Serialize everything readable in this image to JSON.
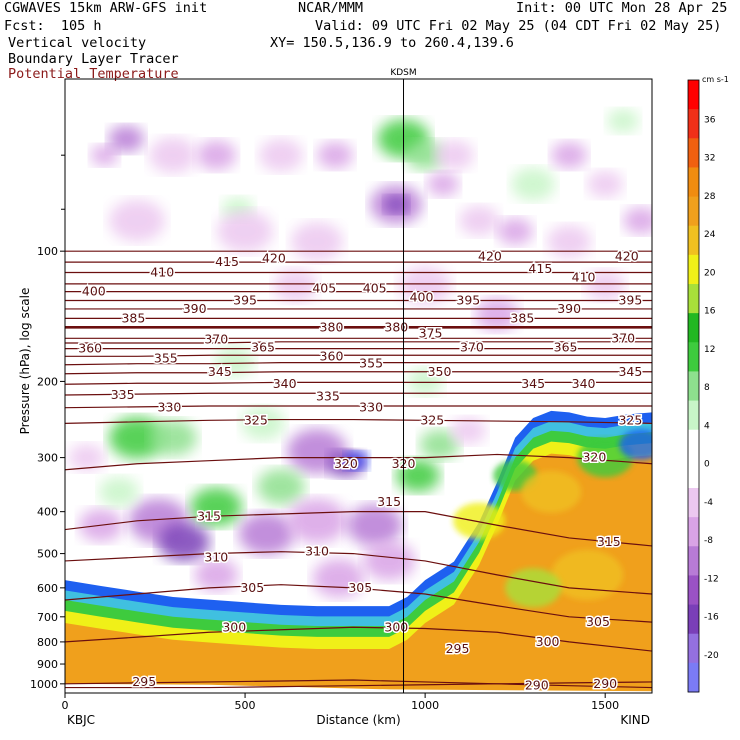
{
  "header": {
    "model": "CGWAVES 15km ARW-GFS init",
    "org": "NCAR/MMM",
    "init": "Init: 00 UTC Mon 28 Apr 25",
    "fcst": "Fcst:  105 h",
    "valid": "Valid: 09 UTC Fri 02 May 25 (04 CDT Fri 02 May 25)",
    "field1": "Vertical velocity",
    "field2": "Boundary Layer Tracer",
    "field3": "Potential Temperature",
    "xy": "XY= 150.5,136.9 to 260.4,139.6",
    "field3_color": "#8b1a1a"
  },
  "chart_data": {
    "type": "heatmap",
    "xlabel": "Distance (km)",
    "ylabel": "Pressure (hPa), log scale",
    "xlim": [
      0,
      1630
    ],
    "xticks": [
      0,
      500,
      1000,
      1500
    ],
    "ylim": [
      1050,
      40
    ],
    "yticks": [
      100,
      200,
      300,
      400,
      500,
      600,
      700,
      800,
      900,
      1000
    ],
    "left_station": "KBJC",
    "right_station": "KIND",
    "marker_station": "KDSM",
    "marker_x": 940,
    "colorbar": {
      "unit": "cm s-1",
      "levels": [
        -20,
        -16,
        -12,
        -8,
        -4,
        0,
        4,
        8,
        12,
        16,
        20,
        24,
        28,
        32,
        36
      ],
      "colors": [
        "#7b7bf5",
        "#9470e0",
        "#7a3fb8",
        "#9a52c4",
        "#b87bd6",
        "#d9a3e6",
        "#ecc8f0",
        "#ffffff",
        "#ffffff",
        "#c8f5c8",
        "#8ee08e",
        "#3ecb3e",
        "#22b822",
        "#a8e03a",
        "#f0f018",
        "#f0c020",
        "#f0a01c",
        "#f08c10",
        "#f06010",
        "#f03018",
        "#ff0000"
      ]
    },
    "theta_contours": [
      {
        "theta": 295,
        "p": [
          1000,
          995,
          990,
          985,
          980,
          990,
          1000,
          1010,
          1020
        ]
      },
      {
        "theta": 290,
        "p": [
          1020,
          1020,
          1020,
          1015,
          1010,
          1005,
          1000,
          995,
          990
        ]
      },
      {
        "theta": 300,
        "p": [
          800,
          780,
          760,
          750,
          740,
          745,
          760,
          800,
          840
        ]
      },
      {
        "theta": 305,
        "p": [
          640,
          620,
          600,
          590,
          600,
          620,
          660,
          700,
          720
        ]
      },
      {
        "theta": 310,
        "p": [
          520,
          510,
          500,
          495,
          500,
          520,
          560,
          600,
          620
        ]
      },
      {
        "theta": 315,
        "p": [
          440,
          420,
          410,
          405,
          400,
          400,
          430,
          460,
          480
        ]
      },
      {
        "theta": 320,
        "p": [
          320,
          310,
          305,
          300,
          300,
          300,
          295,
          300,
          310
        ]
      },
      {
        "theta": 325,
        "p": [
          250,
          248,
          246,
          245,
          245,
          246,
          247,
          248,
          250
        ]
      },
      {
        "theta": 330,
        "p": [
          230,
          229,
          228,
          228,
          228,
          228,
          228,
          228,
          228
        ]
      },
      {
        "theta": 335,
        "p": [
          215,
          214,
          213,
          213,
          213,
          213,
          213,
          213,
          213
        ]
      },
      {
        "theta": 340,
        "p": [
          203,
          202,
          202,
          201,
          201,
          201,
          201,
          201,
          201
        ]
      },
      {
        "theta": 345,
        "p": [
          192,
          191,
          191,
          190,
          190,
          190,
          190,
          190,
          190
        ]
      },
      {
        "theta": 350,
        "p": [
          183,
          182,
          182,
          181,
          181,
          181,
          181,
          181,
          181
        ]
      },
      {
        "theta": 355,
        "p": [
          175,
          175,
          174,
          174,
          174,
          174,
          174,
          174,
          174
        ]
      },
      {
        "theta": 360,
        "p": [
          168,
          168,
          168,
          168,
          168,
          168,
          168,
          168,
          168
        ]
      },
      {
        "theta": 365,
        "p": [
          163,
          163,
          163,
          162,
          162,
          162,
          162,
          162,
          162
        ]
      },
      {
        "theta": 370,
        "p": [
          159,
          159,
          159,
          159,
          159,
          159,
          159,
          159,
          159
        ]
      },
      {
        "theta": 380,
        "p": [
          150,
          150,
          150,
          150,
          150,
          150,
          150,
          150,
          150
        ]
      },
      {
        "theta": 385,
        "p": [
          143,
          143,
          143,
          143,
          143,
          143,
          143,
          143,
          143
        ]
      },
      {
        "theta": 390,
        "p": [
          136,
          136,
          136,
          136,
          136,
          136,
          136,
          136,
          136
        ]
      },
      {
        "theta": 395,
        "p": [
          130,
          130,
          130,
          130,
          130,
          130,
          130,
          130,
          130
        ]
      },
      {
        "theta": 400,
        "p": [
          124,
          124,
          124,
          124,
          124,
          124,
          124,
          124,
          124
        ]
      },
      {
        "theta": 405,
        "p": [
          119,
          119,
          119,
          119,
          119,
          119,
          119,
          119,
          119
        ]
      },
      {
        "theta": 410,
        "p": [
          112,
          112,
          112,
          112,
          112,
          112,
          112,
          112,
          112
        ]
      },
      {
        "theta": 415,
        "p": [
          106,
          106,
          106,
          106,
          106,
          106,
          106,
          106,
          106
        ]
      },
      {
        "theta": 420,
        "p": [
          100,
          100,
          100,
          100,
          100,
          100,
          100,
          100,
          100
        ]
      }
    ],
    "contour_x": [
      0,
      200,
      400,
      600,
      800,
      1000,
      1200,
      1400,
      1630
    ],
    "theta_labels": [
      {
        "t": "295",
        "x": 220,
        "p": 990
      },
      {
        "t": "290",
        "x": 1310,
        "p": 1010
      },
      {
        "t": "290",
        "x": 1500,
        "p": 1000
      },
      {
        "t": "300",
        "x": 470,
        "p": 740
      },
      {
        "t": "300",
        "x": 920,
        "p": 740
      },
      {
        "t": "300",
        "x": 1340,
        "p": 800
      },
      {
        "t": "305",
        "x": 1480,
        "p": 720
      },
      {
        "t": "295",
        "x": 1090,
        "p": 830
      },
      {
        "t": "305",
        "x": 520,
        "p": 600
      },
      {
        "t": "305",
        "x": 820,
        "p": 600
      },
      {
        "t": "310",
        "x": 420,
        "p": 510
      },
      {
        "t": "310",
        "x": 700,
        "p": 495
      },
      {
        "t": "315",
        "x": 400,
        "p": 410
      },
      {
        "t": "315",
        "x": 900,
        "p": 380
      },
      {
        "t": "315",
        "x": 1510,
        "p": 470
      },
      {
        "t": "320",
        "x": 780,
        "p": 310
      },
      {
        "t": "320",
        "x": 940,
        "p": 310
      },
      {
        "t": "320",
        "x": 1470,
        "p": 300
      },
      {
        "t": "325",
        "x": 530,
        "p": 246
      },
      {
        "t": "325",
        "x": 1020,
        "p": 246
      },
      {
        "t": "325",
        "x": 1570,
        "p": 246
      },
      {
        "t": "330",
        "x": 290,
        "p": 230
      },
      {
        "t": "330",
        "x": 850,
        "p": 230
      },
      {
        "t": "335",
        "x": 160,
        "p": 215
      },
      {
        "t": "335",
        "x": 730,
        "p": 217
      },
      {
        "t": "340",
        "x": 610,
        "p": 203
      },
      {
        "t": "340",
        "x": 1440,
        "p": 203
      },
      {
        "t": "345",
        "x": 430,
        "p": 190
      },
      {
        "t": "345",
        "x": 1300,
        "p": 203
      },
      {
        "t": "345",
        "x": 1570,
        "p": 190
      },
      {
        "t": "350",
        "x": 1040,
        "p": 190
      },
      {
        "t": "355",
        "x": 280,
        "p": 177
      },
      {
        "t": "355",
        "x": 850,
        "p": 182
      },
      {
        "t": "360",
        "x": 70,
        "p": 168
      },
      {
        "t": "360",
        "x": 740,
        "p": 175
      },
      {
        "t": "365",
        "x": 550,
        "p": 167
      },
      {
        "t": "365",
        "x": 1390,
        "p": 167
      },
      {
        "t": "370",
        "x": 420,
        "p": 160
      },
      {
        "t": "370",
        "x": 1130,
        "p": 167
      },
      {
        "t": "370",
        "x": 1550,
        "p": 159
      },
      {
        "t": "375",
        "x": 1015,
        "p": 155
      },
      {
        "t": "380",
        "x": 740,
        "p": 150
      },
      {
        "t": "380",
        "x": 920,
        "p": 150
      },
      {
        "t": "385",
        "x": 190,
        "p": 143
      },
      {
        "t": "385",
        "x": 1270,
        "p": 143
      },
      {
        "t": "390",
        "x": 360,
        "p": 136
      },
      {
        "t": "390",
        "x": 1400,
        "p": 136
      },
      {
        "t": "395",
        "x": 500,
        "p": 130
      },
      {
        "t": "395",
        "x": 1120,
        "p": 130
      },
      {
        "t": "395",
        "x": 1570,
        "p": 130
      },
      {
        "t": "400",
        "x": 80,
        "p": 124
      },
      {
        "t": "400",
        "x": 990,
        "p": 128
      },
      {
        "t": "405",
        "x": 720,
        "p": 122
      },
      {
        "t": "405",
        "x": 860,
        "p": 122
      },
      {
        "t": "410",
        "x": 270,
        "p": 112
      },
      {
        "t": "410",
        "x": 1440,
        "p": 115
      },
      {
        "t": "415",
        "x": 450,
        "p": 106
      },
      {
        "t": "415",
        "x": 1320,
        "p": 110
      },
      {
        "t": "420",
        "x": 580,
        "p": 104
      },
      {
        "t": "420",
        "x": 1180,
        "p": 103
      },
      {
        "t": "420",
        "x": 1560,
        "p": 103
      }
    ]
  }
}
